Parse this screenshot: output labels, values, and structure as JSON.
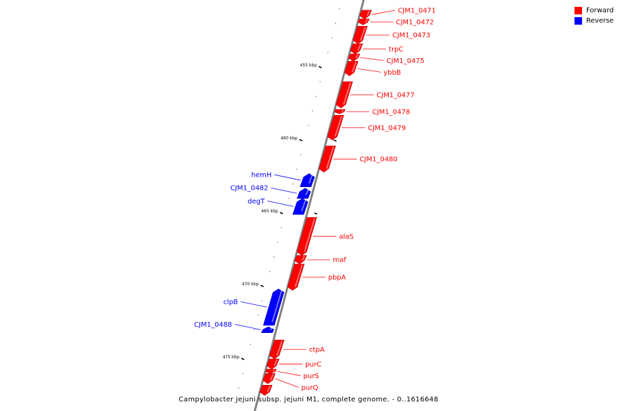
{
  "caption": "Campylobacter jejuni subsp. jejuni M1, complete genome. - 0..1616648",
  "legend": [
    {
      "label": "Forward",
      "color": "#ff0000"
    },
    {
      "label": "Reverse",
      "color": "#0000ff"
    }
  ],
  "colors": {
    "forward": "#ff0000",
    "reverse": "#0000ff",
    "backbone": "#808080"
  },
  "scale": {
    "ticks": [
      {
        "label": "455 kbp",
        "pos": 455
      },
      {
        "label": "460 kbp",
        "pos": 460
      },
      {
        "label": "465 kbp",
        "pos": 465
      },
      {
        "label": "470 kbp",
        "pos": 470
      },
      {
        "label": "475 kbp",
        "pos": 475
      }
    ]
  },
  "genes": [
    {
      "name": "CJM1_0471",
      "strand": "forward",
      "start": 451.1,
      "end": 451.7
    },
    {
      "name": "CJM1_0472",
      "strand": "forward",
      "start": 451.7,
      "end": 452.1
    },
    {
      "name": "CJM1_0473",
      "strand": "forward",
      "start": 452.2,
      "end": 453.4
    },
    {
      "name": "trpC",
      "strand": "forward",
      "start": 453.4,
      "end": 454.1
    },
    {
      "name": "CJM1_0475",
      "strand": "forward",
      "start": 454.1,
      "end": 454.6
    },
    {
      "name": "ybbB",
      "strand": "forward",
      "start": 454.6,
      "end": 455.6
    },
    {
      "name": "CJM1_0477",
      "strand": "forward",
      "start": 456.0,
      "end": 457.8
    },
    {
      "name": "CJM1_0478",
      "strand": "forward",
      "start": 457.9,
      "end": 458.2
    },
    {
      "name": "CJM1_0479",
      "strand": "forward",
      "start": 458.3,
      "end": 460.0
    },
    {
      "name": "CJM1_0480",
      "strand": "forward",
      "start": 460.4,
      "end": 462.2
    },
    {
      "name": "hemH",
      "strand": "reverse",
      "start": 462.3,
      "end": 463.2
    },
    {
      "name": "CJM1_0482",
      "strand": "reverse",
      "start": 463.3,
      "end": 464.0
    },
    {
      "name": "degT",
      "strand": "reverse",
      "start": 464.0,
      "end": 465.1
    },
    {
      "name": "alaS",
      "strand": "forward",
      "start": 465.3,
      "end": 467.9
    },
    {
      "name": "maf",
      "strand": "forward",
      "start": 467.9,
      "end": 468.5
    },
    {
      "name": "pbpA",
      "strand": "forward",
      "start": 468.5,
      "end": 470.3
    },
    {
      "name": "clpB",
      "strand": "reverse",
      "start": 470.2,
      "end": 472.7
    },
    {
      "name": "CJM1_0488",
      "strand": "reverse",
      "start": 472.8,
      "end": 473.2
    },
    {
      "name": "ctpA",
      "strand": "forward",
      "start": 473.7,
      "end": 475.0
    },
    {
      "name": "purC",
      "strand": "forward",
      "start": 475.0,
      "end": 475.7
    },
    {
      "name": "purS",
      "strand": "forward",
      "start": 475.7,
      "end": 476.0
    },
    {
      "name": "purQ",
      "strand": "forward",
      "start": 476.0,
      "end": 476.7
    },
    {
      "name": "",
      "strand": "forward",
      "start": 476.8,
      "end": 477.5
    }
  ]
}
